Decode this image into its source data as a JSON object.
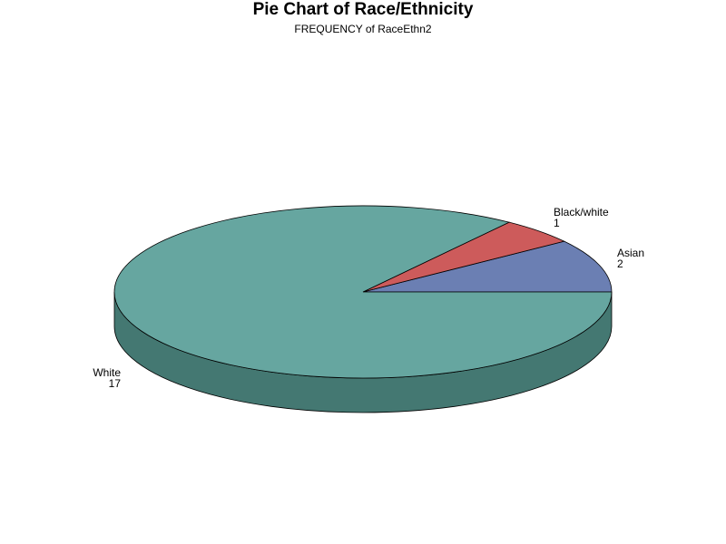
{
  "chart_data": {
    "type": "pie",
    "title": "Pie Chart of Race/Ethnicity",
    "subtitle": "FREQUENCY of RaceEthn2",
    "style": "3d",
    "slices": [
      {
        "label": "Asian",
        "value": 2,
        "color": "#6b7fb3",
        "side_color": "#4e5e87"
      },
      {
        "label": "Black/white",
        "value": 1,
        "color": "#cd5b5b",
        "side_color": "#9a4444"
      },
      {
        "label": "White",
        "value": 17,
        "color": "#66a6a0",
        "side_color": "#447872"
      }
    ]
  }
}
